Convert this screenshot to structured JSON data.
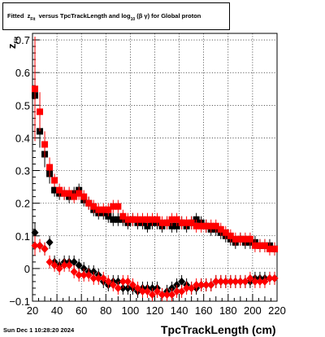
{
  "title": {
    "prefix": "Fitted",
    "z": "z",
    "z_sub": "Fit",
    "middle": "versus TpcTrackLength and log",
    "log_sub": "10",
    "suffix": "(β γ) for Global proton"
  },
  "timestamp": "Sun Dec  1 10:28:20 2024",
  "colors": {
    "series_black": "#000000",
    "series_red": "#ff0000",
    "grid": "#000000"
  },
  "chart_data": {
    "type": "scatter",
    "title": "Fitted z_Fit versus TpcTrackLength and log_10(β γ) for Global proton",
    "xlabel": "TpcTrackLength (cm)",
    "ylabel": "z_Fit",
    "xlim": [
      20,
      220
    ],
    "ylim": [
      -0.1,
      0.72
    ],
    "xticks": [
      "20",
      "40",
      "60",
      "80",
      "100",
      "120",
      "140",
      "160",
      "180",
      "200",
      "220"
    ],
    "yticks": [
      "−0.1",
      "0",
      "0.1",
      "0.2",
      "0.3",
      "0.4",
      "0.5",
      "0.6",
      "0.7"
    ],
    "grid": true,
    "series": [
      {
        "marker": "square",
        "color": "#000000",
        "x": [
          22,
          26,
          30,
          34,
          38,
          42,
          46,
          50,
          54,
          58,
          62,
          66,
          70,
          74,
          78,
          82,
          86,
          90,
          94,
          98,
          102,
          106,
          110,
          114,
          118,
          122,
          126,
          130,
          134,
          138,
          142,
          146,
          150,
          154,
          158,
          162,
          166,
          170,
          174,
          178,
          182,
          186,
          190,
          194,
          198,
          202,
          206,
          210,
          214,
          218
        ],
        "y": [
          0.53,
          0.42,
          0.35,
          0.29,
          0.24,
          0.23,
          0.23,
          0.22,
          0.23,
          0.24,
          0.21,
          0.2,
          0.18,
          0.17,
          0.17,
          0.16,
          0.15,
          0.15,
          0.15,
          0.14,
          0.15,
          0.14,
          0.14,
          0.13,
          0.14,
          0.14,
          0.13,
          0.14,
          0.13,
          0.13,
          0.14,
          0.13,
          0.14,
          0.15,
          0.14,
          0.13,
          0.12,
          0.12,
          0.11,
          0.1,
          0.09,
          0.08,
          0.09,
          0.08,
          0.08,
          0.08,
          0.07,
          0.07,
          0.07,
          0.06
        ],
        "yerr": [
          0.12,
          0.05,
          0.04,
          0.03,
          0.02,
          0.02,
          0.02,
          0.02,
          0.02,
          0.02,
          0.02,
          0.02,
          0.02,
          0.02,
          0.02,
          0.02,
          0.02,
          0.02,
          0.02,
          0.02,
          0.02,
          0.02,
          0.02,
          0.02,
          0.02,
          0.02,
          0.02,
          0.02,
          0.02,
          0.02,
          0.02,
          0.02,
          0.02,
          0.02,
          0.02,
          0.02,
          0.02,
          0.02,
          0.02,
          0.02,
          0.02,
          0.02,
          0.02,
          0.02,
          0.02,
          0.02,
          0.02,
          0.02,
          0.02,
          0.02
        ]
      },
      {
        "marker": "square",
        "color": "#ff0000",
        "x": [
          22,
          26,
          30,
          34,
          38,
          42,
          46,
          50,
          54,
          58,
          62,
          66,
          70,
          74,
          78,
          82,
          86,
          90,
          94,
          98,
          102,
          106,
          110,
          114,
          118,
          122,
          126,
          130,
          134,
          138,
          142,
          146,
          150,
          154,
          158,
          162,
          166,
          170,
          174,
          178,
          182,
          186,
          190,
          194,
          198,
          202,
          206,
          210,
          214,
          218
        ],
        "y": [
          0.55,
          0.48,
          0.38,
          0.31,
          0.27,
          0.24,
          0.23,
          0.23,
          0.22,
          0.23,
          0.22,
          0.2,
          0.19,
          0.18,
          0.18,
          0.18,
          0.19,
          0.19,
          0.16,
          0.15,
          0.15,
          0.15,
          0.15,
          0.15,
          0.15,
          0.15,
          0.14,
          0.14,
          0.15,
          0.15,
          0.14,
          0.14,
          0.14,
          0.13,
          0.13,
          0.13,
          0.13,
          0.13,
          0.12,
          0.11,
          0.1,
          0.09,
          0.09,
          0.09,
          0.09,
          0.07,
          0.07,
          0.07,
          0.06,
          0.06
        ],
        "yerr": [
          0.16,
          0.06,
          0.04,
          0.03,
          0.02,
          0.02,
          0.02,
          0.02,
          0.02,
          0.02,
          0.02,
          0.02,
          0.02,
          0.02,
          0.02,
          0.02,
          0.02,
          0.02,
          0.02,
          0.02,
          0.02,
          0.02,
          0.02,
          0.02,
          0.02,
          0.02,
          0.02,
          0.02,
          0.02,
          0.02,
          0.02,
          0.02,
          0.02,
          0.02,
          0.02,
          0.02,
          0.02,
          0.02,
          0.02,
          0.02,
          0.02,
          0.02,
          0.02,
          0.02,
          0.02,
          0.02,
          0.02,
          0.02,
          0.02,
          0.02
        ]
      },
      {
        "marker": "diamond",
        "color": "#000000",
        "x": [
          22,
          26,
          30,
          34,
          38,
          42,
          46,
          50,
          54,
          58,
          62,
          66,
          70,
          74,
          78,
          82,
          86,
          90,
          94,
          98,
          102,
          106,
          110,
          114,
          118,
          122,
          126,
          130,
          134,
          138,
          142,
          146,
          150,
          154,
          158,
          162,
          166,
          170,
          174,
          178,
          182,
          186,
          190,
          194,
          198,
          202,
          206,
          210,
          214,
          218
        ],
        "y": [
          0.11,
          0.07,
          0.06,
          0.08,
          0.02,
          0.01,
          0.02,
          0.02,
          0.02,
          0.01,
          0.0,
          -0.01,
          -0.01,
          -0.02,
          -0.04,
          -0.05,
          -0.04,
          -0.04,
          -0.06,
          -0.06,
          -0.06,
          -0.07,
          -0.06,
          -0.06,
          -0.06,
          -0.06,
          -0.08,
          -0.07,
          -0.06,
          -0.05,
          -0.04,
          -0.05,
          -0.06,
          -0.06,
          -0.05,
          -0.05,
          -0.05,
          -0.04,
          -0.04,
          -0.04,
          -0.04,
          -0.04,
          -0.04,
          -0.04,
          -0.04,
          -0.03,
          -0.03,
          -0.03,
          -0.03,
          -0.03
        ],
        "yerr": [
          0.03,
          0.02,
          0.02,
          0.02,
          0.02,
          0.02,
          0.02,
          0.02,
          0.02,
          0.02,
          0.02,
          0.02,
          0.02,
          0.02,
          0.02,
          0.02,
          0.02,
          0.02,
          0.02,
          0.02,
          0.02,
          0.02,
          0.02,
          0.02,
          0.02,
          0.02,
          0.02,
          0.02,
          0.02,
          0.02,
          0.02,
          0.02,
          0.02,
          0.02,
          0.02,
          0.02,
          0.02,
          0.02,
          0.02,
          0.02,
          0.02,
          0.02,
          0.02,
          0.02,
          0.02,
          0.02,
          0.02,
          0.02,
          0.02,
          0.02
        ]
      },
      {
        "marker": "diamond",
        "color": "#ff0000",
        "x": [
          22,
          26,
          30,
          34,
          38,
          42,
          46,
          50,
          54,
          58,
          62,
          66,
          70,
          74,
          78,
          82,
          86,
          90,
          94,
          98,
          102,
          106,
          110,
          114,
          118,
          122,
          126,
          130,
          134,
          138,
          142,
          146,
          150,
          154,
          158,
          162,
          166,
          170,
          174,
          178,
          182,
          186,
          190,
          194,
          198,
          202,
          206,
          210,
          214,
          218
        ],
        "y": [
          0.07,
          0.07,
          0.06,
          0.02,
          0.01,
          0.0,
          0.01,
          0.01,
          -0.01,
          -0.02,
          -0.02,
          -0.02,
          -0.03,
          -0.03,
          -0.03,
          -0.04,
          -0.05,
          -0.06,
          -0.04,
          -0.04,
          -0.05,
          -0.06,
          -0.07,
          -0.07,
          -0.08,
          -0.07,
          -0.08,
          -0.08,
          -0.08,
          -0.07,
          -0.07,
          -0.06,
          -0.06,
          -0.05,
          -0.05,
          -0.05,
          -0.05,
          -0.04,
          -0.04,
          -0.04,
          -0.04,
          -0.04,
          -0.04,
          -0.04,
          -0.03,
          -0.04,
          -0.04,
          -0.04,
          -0.03,
          -0.03
        ],
        "yerr": [
          0.03,
          0.02,
          0.02,
          0.02,
          0.02,
          0.02,
          0.02,
          0.02,
          0.02,
          0.02,
          0.02,
          0.02,
          0.02,
          0.02,
          0.02,
          0.02,
          0.02,
          0.02,
          0.02,
          0.02,
          0.02,
          0.02,
          0.02,
          0.02,
          0.02,
          0.02,
          0.02,
          0.02,
          0.02,
          0.02,
          0.02,
          0.02,
          0.02,
          0.02,
          0.02,
          0.02,
          0.02,
          0.02,
          0.02,
          0.02,
          0.02,
          0.02,
          0.02,
          0.02,
          0.02,
          0.02,
          0.02,
          0.02,
          0.02,
          0.02
        ]
      }
    ]
  }
}
